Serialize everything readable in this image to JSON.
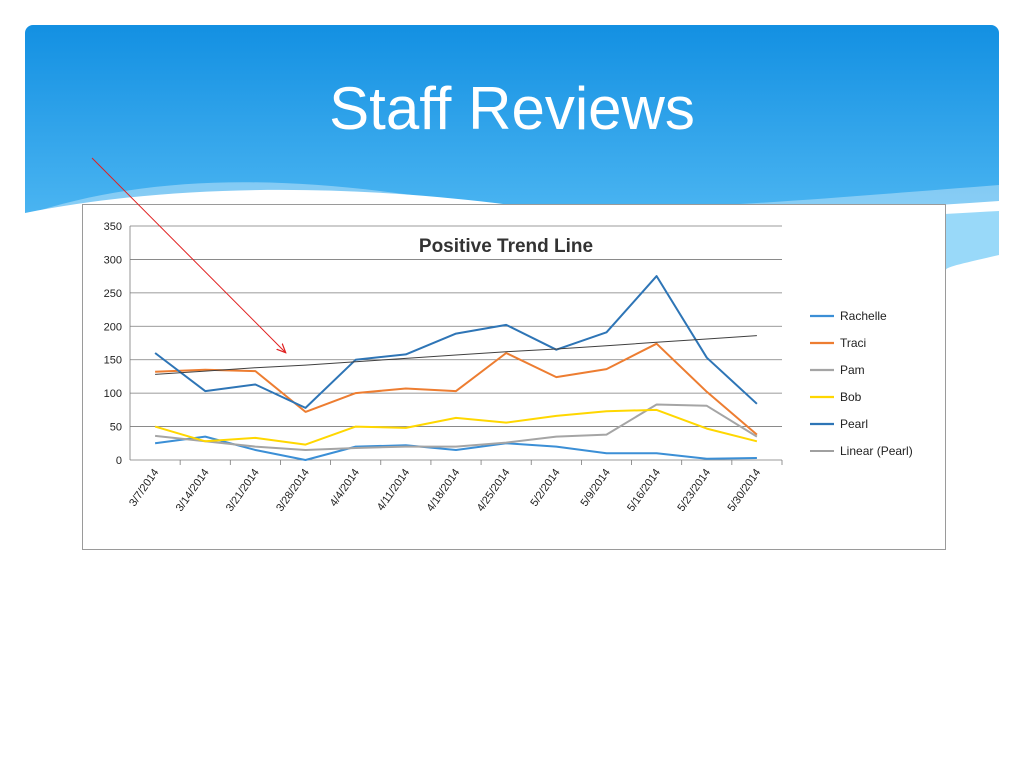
{
  "slide": {
    "title": "Staff Reviews",
    "header_colors": [
      "#1390e2",
      "#5cc0f6"
    ]
  },
  "annotation": {
    "type": "arrow",
    "color": "#e02020",
    "points_to": "Linear (Pearl)"
  },
  "chart_data": {
    "type": "line",
    "title": "Positive Trend Line",
    "categories": [
      "3/7/2014",
      "3/14/2014",
      "3/21/2014",
      "3/28/2014",
      "4/4/2014",
      "4/11/2014",
      "4/18/2014",
      "4/25/2014",
      "5/2/2014",
      "5/9/2014",
      "5/16/2014",
      "5/23/2014",
      "5/30/2014"
    ],
    "ylim": [
      0,
      350
    ],
    "yticks": [
      0,
      50,
      100,
      150,
      200,
      250,
      300,
      350
    ],
    "grid": true,
    "legend": "right",
    "series": [
      {
        "name": "Rachelle",
        "color": "#3b8fd6",
        "values": [
          25,
          35,
          15,
          0,
          20,
          22,
          15,
          25,
          20,
          10,
          10,
          2,
          3
        ]
      },
      {
        "name": "Traci",
        "color": "#ed7d31",
        "values": [
          132,
          135,
          133,
          72,
          100,
          107,
          103,
          160,
          124,
          136,
          174,
          102,
          38
        ]
      },
      {
        "name": "Pam",
        "color": "#a5a5a5",
        "values": [
          36,
          28,
          20,
          15,
          18,
          20,
          20,
          26,
          35,
          38,
          83,
          81,
          35
        ]
      },
      {
        "name": "Bob",
        "color": "#ffd700",
        "values": [
          50,
          28,
          33,
          23,
          50,
          48,
          63,
          56,
          66,
          73,
          75,
          47,
          28
        ]
      },
      {
        "name": "Pearl",
        "color": "#2e75b6",
        "values": [
          160,
          103,
          113,
          78,
          150,
          158,
          189,
          202,
          165,
          191,
          275,
          153,
          84
        ]
      },
      {
        "name": "Linear (Pearl)",
        "color": "#404040",
        "values": [
          128,
          133,
          138,
          142,
          147,
          152,
          157,
          162,
          166,
          171,
          176,
          181,
          186
        ]
      }
    ]
  }
}
